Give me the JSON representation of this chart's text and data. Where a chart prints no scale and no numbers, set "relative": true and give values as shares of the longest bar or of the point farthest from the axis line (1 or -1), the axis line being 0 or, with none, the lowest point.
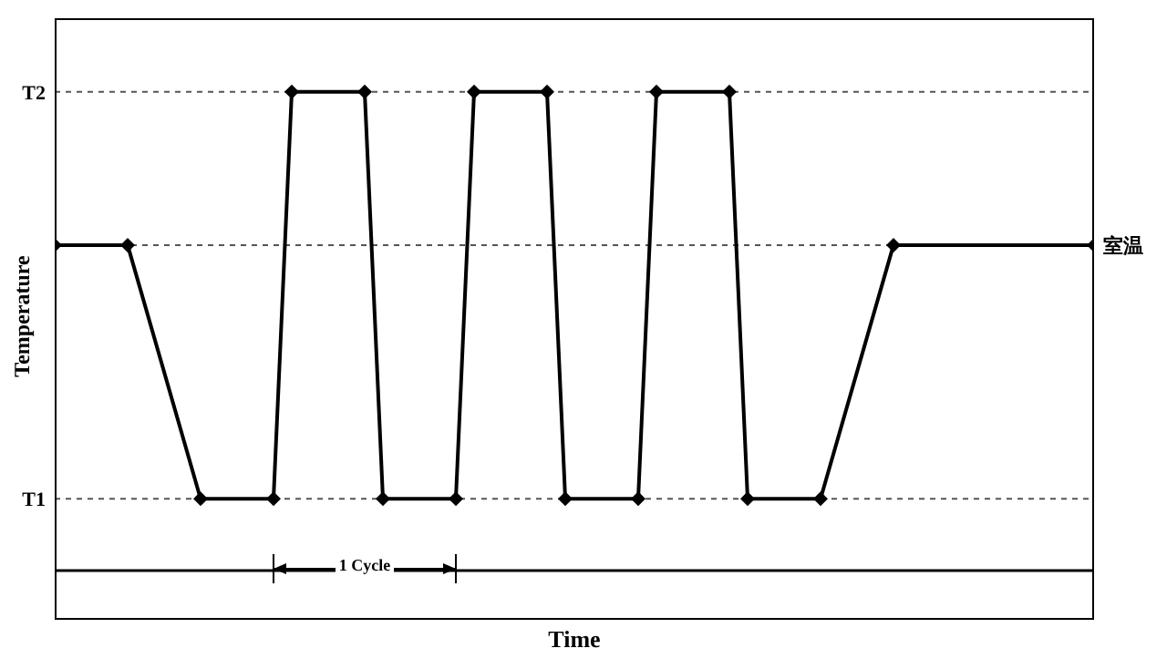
{
  "chart_data": {
    "type": "line",
    "relative": true,
    "xlabel": "Time",
    "ylabel": "Temperature",
    "categories": [
      null,
      null,
      null,
      null,
      null,
      null,
      null,
      null,
      null,
      null,
      null,
      null,
      null,
      null,
      null,
      null,
      null,
      null,
      null,
      null,
      null,
      null,
      null,
      null,
      null,
      null,
      null,
      null,
      null,
      null,
      null,
      null,
      null,
      null,
      null,
      null,
      null,
      null,
      null,
      null,
      null,
      null,
      null,
      null,
      null,
      null,
      null,
      null,
      null,
      null,
      null,
      null,
      null,
      null,
      null,
      null,
      null,
      null
    ],
    "series": [
      {
        "color": "#000000",
        "values": [
          0.68,
          null,
          null,
          null,
          0.68,
          null,
          null,
          null,
          0.15,
          null,
          null,
          null,
          0.15,
          1,
          null,
          null,
          null,
          1,
          0.15,
          null,
          null,
          null,
          0.15,
          1,
          null,
          null,
          null,
          1,
          0.15,
          null,
          null,
          null,
          0.15,
          1,
          null,
          null,
          null,
          1,
          0.15,
          null,
          null,
          null,
          0.15,
          null,
          null,
          null,
          0.68,
          null,
          null,
          null,
          null,
          null,
          null,
          null,
          null,
          null,
          null,
          0.68
        ]
      }
    ],
    "ref_lines": [
      {
        "axis": "y",
        "value": 1,
        "label": "T2",
        "color": "#555555",
        "line_style": "dotted"
      },
      {
        "axis": "y",
        "value": 0.68,
        "label": "室温",
        "color": "#555555",
        "line_style": "dotted"
      },
      {
        "axis": "y",
        "value": 0.15,
        "label": "T1",
        "color": "#555555",
        "line_style": "dotted"
      }
    ],
    "annotations": [
      "1 Cycle"
    ],
    "marker": "diamond",
    "line_style": "solid"
  }
}
